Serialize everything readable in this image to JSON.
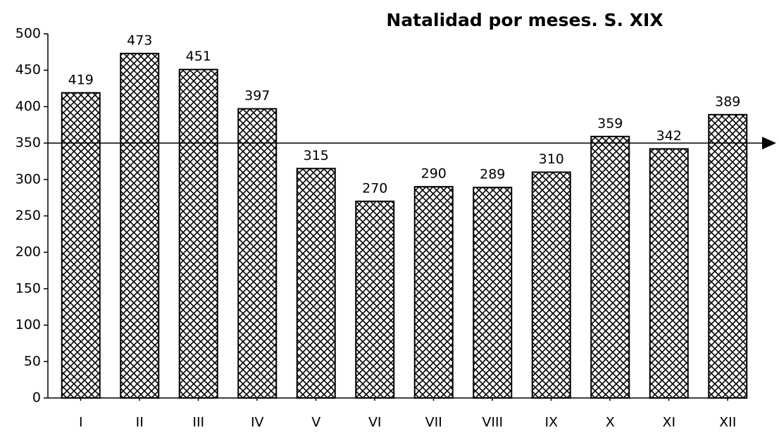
{
  "chart_data": {
    "type": "bar",
    "title": "Natalidad por meses. S. XIX",
    "categories": [
      "I",
      "II",
      "III",
      "IV",
      "V",
      "VI",
      "VII",
      "VIII",
      "IX",
      "X",
      "XI",
      "XII"
    ],
    "values": [
      419,
      473,
      451,
      397,
      315,
      270,
      290,
      289,
      310,
      359,
      342,
      389
    ],
    "color": "#000000",
    "ylim": [
      0,
      500
    ],
    "yticks": [
      0,
      50,
      100,
      150,
      200,
      250,
      300,
      350,
      400,
      450,
      500
    ],
    "reference_line": 350,
    "grid": false
  }
}
